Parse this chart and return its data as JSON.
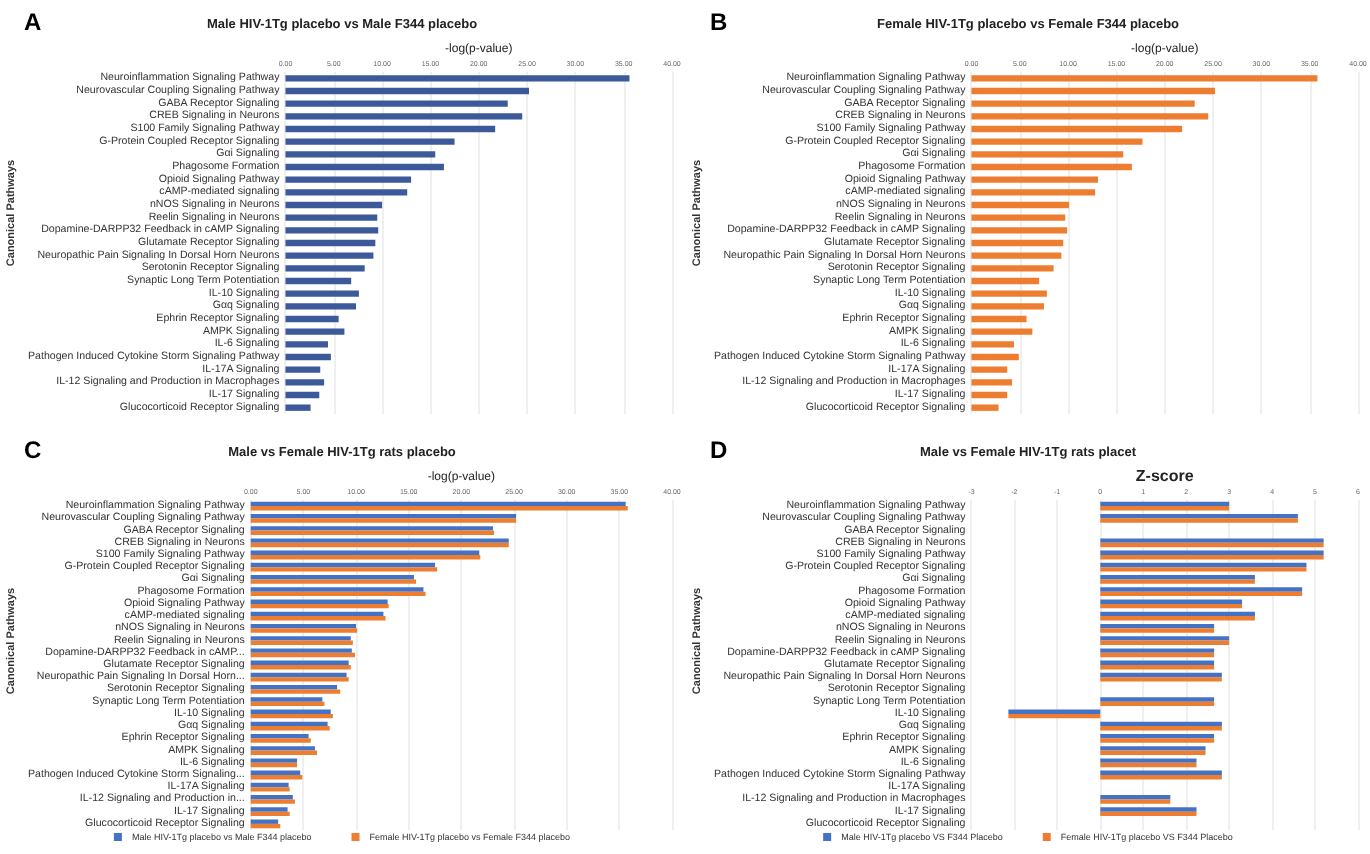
{
  "chart_data": [
    {
      "type": "bar",
      "orientation": "horizontal",
      "title": "Male HIV-1Tg placebo vs Male F344 placebo",
      "xlabel": "-log(p-value)",
      "ylabel": "Canonical Pathways",
      "annotations": [
        "A"
      ],
      "categories": [
        "Neuroinflammation Signaling Pathway",
        "Neurovascular Coupling Signaling Pathway",
        "GABA Receptor Signaling",
        "CREB Signaling in Neurons",
        "S100 Family Signaling Pathway",
        "G-Protein Coupled Receptor Signaling",
        "Gαi Signaling",
        "Phagosome Formation",
        "Opioid Signaling Pathway",
        "cAMP-mediated signaling",
        "nNOS Signaling in Neurons",
        "Reelin Signaling in Neurons",
        "Dopamine-DARPP32 Feedback in cAMP Signaling",
        "Glutamate Receptor Signaling",
        "Neuropathic Pain Signaling In Dorsal Horn Neurons",
        "Serotonin Receptor Signaling",
        "Synaptic Long Term Potentiation",
        "IL-10 Signaling",
        "Gαq Signaling",
        "Ephrin Receptor Signaling",
        "AMPK Signaling",
        "IL-6 Signaling",
        "Pathogen Induced Cytokine Storm Signaling Pathway",
        "IL-17A Signaling",
        "IL-12 Signaling and Production in Macrophages",
        "IL-17 Signaling",
        "Glucocorticoid Receptor Signaling"
      ],
      "values": [
        35.6,
        25.2,
        23.0,
        24.5,
        21.7,
        17.5,
        15.5,
        16.4,
        13.0,
        12.6,
        10.0,
        9.5,
        9.6,
        9.3,
        9.1,
        8.2,
        6.8,
        7.6,
        7.3,
        5.5,
        6.1,
        4.4,
        4.7,
        3.6,
        4.0,
        3.5,
        2.6
      ],
      "color": "#3c5a9a",
      "xlim": [
        0,
        40
      ],
      "xticks": [
        {
          "value": 0,
          "label": "0.00"
        },
        {
          "value": 5,
          "label": "5.00"
        },
        {
          "value": 10,
          "label": "10.00"
        },
        {
          "value": 15,
          "label": "15.00"
        },
        {
          "value": 20,
          "label": "20.00"
        },
        {
          "value": 25,
          "label": "25.00"
        },
        {
          "value": 30,
          "label": "30.00"
        },
        {
          "value": 35,
          "label": "35.00"
        },
        {
          "value": 40,
          "label": "40.00"
        }
      ],
      "grid": "x"
    },
    {
      "type": "bar",
      "orientation": "horizontal",
      "title": "Female HIV-1Tg placebo vs Female F344 placebo",
      "xlabel": "-log(p-value)",
      "ylabel": "Canonical Pathways",
      "annotations": [
        "B"
      ],
      "categories": [
        "Neuroinflammation Signaling Pathway",
        "Neurovascular Coupling Signaling Pathway",
        "GABA Receptor Signaling",
        "CREB Signaling in Neurons",
        "S100 Family Signaling Pathway",
        "G-Protein Coupled Receptor Signaling",
        "Gαi Signaling",
        "Phagosome Formation",
        "Opioid Signaling Pathway",
        "cAMP-mediated signaling",
        "nNOS Signaling in Neurons",
        "Reelin Signaling in Neurons",
        "Dopamine-DARPP32 Feedback in cAMP Signaling",
        "Glutamate Receptor Signaling",
        "Neuropathic Pain Signaling In Dorsal Horn Neurons",
        "Serotonin Receptor Signaling",
        "Synaptic Long Term Potentiation",
        "IL-10 Signaling",
        "Gαq Signaling",
        "Ephrin Receptor Signaling",
        "AMPK Signaling",
        "IL-6 Signaling",
        "Pathogen Induced Cytokine Storm Signaling Pathway",
        "IL-17A Signaling",
        "IL-12 Signaling and Production in Macrophages",
        "IL-17 Signaling",
        "Glucocorticoid Receptor Signaling"
      ],
      "values": [
        35.8,
        25.2,
        23.1,
        24.5,
        21.8,
        17.7,
        15.7,
        16.6,
        13.1,
        12.8,
        10.1,
        9.7,
        9.9,
        9.5,
        9.3,
        8.5,
        7.0,
        7.8,
        7.5,
        5.7,
        6.3,
        4.4,
        4.9,
        3.7,
        4.2,
        3.7,
        2.8
      ],
      "color": "#ed7d31",
      "xlim": [
        0,
        40
      ],
      "xticks": [
        {
          "value": 0,
          "label": "0.00"
        },
        {
          "value": 5,
          "label": "5.00"
        },
        {
          "value": 10,
          "label": "10.00"
        },
        {
          "value": 15,
          "label": "15.00"
        },
        {
          "value": 20,
          "label": "20.00"
        },
        {
          "value": 25,
          "label": "25.00"
        },
        {
          "value": 30,
          "label": "30.00"
        },
        {
          "value": 35,
          "label": "35.00"
        },
        {
          "value": 40,
          "label": "40.00"
        }
      ],
      "grid": "x"
    },
    {
      "type": "bar",
      "orientation": "horizontal",
      "title": "Male vs Female HIV-1Tg rats placebo",
      "xlabel": "-log(p-value)",
      "ylabel": "Canonical Pathways",
      "annotations": [
        "C"
      ],
      "categories": [
        "Neuroinflammation Signaling Pathway",
        "Neurovascular Coupling Signaling Pathway",
        "GABA Receptor Signaling",
        "CREB Signaling in Neurons",
        "S100 Family Signaling Pathway",
        "G-Protein Coupled Receptor Signaling",
        "Gαi Signaling",
        "Phagosome Formation",
        "Opioid Signaling Pathway",
        "cAMP-mediated signaling",
        "nNOS Signaling in Neurons",
        "Reelin Signaling in Neurons",
        "Dopamine-DARPP32 Feedback in cAMP...",
        "Glutamate Receptor Signaling",
        "Neuropathic Pain Signaling In Dorsal Horn...",
        "Serotonin Receptor Signaling",
        "Synaptic Long Term Potentiation",
        "IL-10 Signaling",
        "Gαq Signaling",
        "Ephrin Receptor Signaling",
        "AMPK Signaling",
        "IL-6 Signaling",
        "Pathogen Induced Cytokine Storm Signaling...",
        "IL-17A Signaling",
        "IL-12 Signaling and Production in...",
        "IL-17 Signaling",
        "Glucocorticoid Receptor Signaling"
      ],
      "series": [
        {
          "name": "Male HIV-1Tg placebo vs Male F344 placebo",
          "color": "#4472c4",
          "values": [
            35.6,
            25.2,
            23.0,
            24.5,
            21.7,
            17.5,
            15.5,
            16.4,
            13.0,
            12.6,
            10.0,
            9.5,
            9.6,
            9.3,
            9.1,
            8.2,
            6.8,
            7.6,
            7.3,
            5.5,
            6.1,
            4.4,
            4.7,
            3.6,
            4.0,
            3.5,
            2.6
          ]
        },
        {
          "name": "Female HIV-1Tg placebo vs Female F344 placebo",
          "color": "#ed7d31",
          "values": [
            35.8,
            25.2,
            23.1,
            24.5,
            21.8,
            17.7,
            15.7,
            16.6,
            13.1,
            12.8,
            10.1,
            9.7,
            9.9,
            9.5,
            9.3,
            8.5,
            7.0,
            7.8,
            7.5,
            5.7,
            6.3,
            4.4,
            4.9,
            3.7,
            4.2,
            3.7,
            2.8
          ]
        }
      ],
      "xlim": [
        0,
        40
      ],
      "xticks": [
        {
          "value": 0,
          "label": "0.00"
        },
        {
          "value": 5,
          "label": "5.00"
        },
        {
          "value": 10,
          "label": "10.00"
        },
        {
          "value": 15,
          "label": "15.00"
        },
        {
          "value": 20,
          "label": "20.00"
        },
        {
          "value": 25,
          "label": "25.00"
        },
        {
          "value": 30,
          "label": "30.00"
        },
        {
          "value": 35,
          "label": "35.00"
        },
        {
          "value": 40,
          "label": "40.00"
        }
      ],
      "grid": "x",
      "legend": "bottom"
    },
    {
      "type": "bar",
      "orientation": "horizontal",
      "title": "Male vs Female HIV-1Tg rats placet",
      "xlabel": "Z-score",
      "ylabel": "Canonical Pathways",
      "annotations": [
        "D"
      ],
      "categories": [
        "Neuroinflammation Signaling Pathway",
        "Neurovascular Coupling Signaling Pathway",
        "GABA Receptor Signaling",
        "CREB Signaling in Neurons",
        "S100 Family Signaling Pathway",
        "G-Protein Coupled Receptor Signaling",
        "Gαi Signaling",
        "Phagosome Formation",
        "Opioid Signaling Pathway",
        "cAMP-mediated signaling",
        "nNOS Signaling in Neurons",
        "Reelin Signaling in Neurons",
        "Dopamine-DARPP32 Feedback in cAMP Signaling",
        "Glutamate Receptor Signaling",
        "Neuropathic Pain Signaling In Dorsal Horn Neurons",
        "Serotonin Receptor Signaling",
        "Synaptic Long Term Potentiation",
        "IL-10 Signaling",
        "Gαq Signaling",
        "Ephrin Receptor Signaling",
        "AMPK Signaling",
        "IL-6 Signaling",
        "Pathogen Induced Cytokine Storm Signaling Pathway",
        "IL-17A Signaling",
        "IL-12 Signaling and Production in Macrophages",
        "IL-17 Signaling",
        "Glucocorticoid Receptor Signaling"
      ],
      "series": [
        {
          "name": "Male HIV-1Tg placebo VS F344 Placebo",
          "color": "#4472c4",
          "values": [
            3.0,
            4.6,
            null,
            5.2,
            5.2,
            4.8,
            3.6,
            4.7,
            3.3,
            3.6,
            2.65,
            3.0,
            2.65,
            2.65,
            2.83,
            null,
            2.65,
            -2.14,
            2.83,
            2.65,
            2.45,
            2.24,
            2.83,
            null,
            1.63,
            2.24,
            null
          ]
        },
        {
          "name": "Female HIV-1Tg placebo VS F344 Placebo",
          "color": "#ed7d31",
          "values": [
            3.0,
            4.6,
            null,
            5.2,
            5.2,
            4.8,
            3.6,
            4.7,
            3.3,
            3.6,
            2.65,
            3.0,
            2.65,
            2.65,
            2.83,
            null,
            2.65,
            -2.14,
            2.83,
            2.65,
            2.45,
            2.24,
            2.83,
            null,
            1.63,
            2.24,
            null
          ]
        }
      ],
      "xlim": [
        -3,
        6
      ],
      "xticks": [
        -3,
        -2,
        -1,
        0,
        1,
        2,
        3,
        4,
        5,
        6
      ],
      "grid": "x",
      "legend": "bottom"
    }
  ]
}
